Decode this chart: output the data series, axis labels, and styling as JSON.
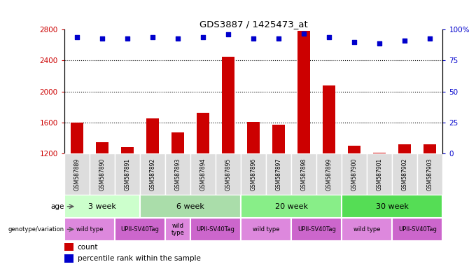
{
  "title": "GDS3887 / 1425473_at",
  "samples": [
    "GSM587889",
    "GSM587890",
    "GSM587891",
    "GSM587892",
    "GSM587893",
    "GSM587894",
    "GSM587895",
    "GSM587896",
    "GSM587897",
    "GSM587898",
    "GSM587899",
    "GSM587900",
    "GSM587901",
    "GSM587902",
    "GSM587903"
  ],
  "counts": [
    1600,
    1340,
    1280,
    1650,
    1470,
    1720,
    2450,
    1610,
    1570,
    2780,
    2080,
    1300,
    1210,
    1320,
    1320
  ],
  "percentiles": [
    94,
    93,
    93,
    94,
    93,
    94,
    96,
    93,
    93,
    97,
    94,
    90,
    89,
    91,
    93
  ],
  "bar_color": "#cc0000",
  "dot_color": "#0000cc",
  "ylim_left": [
    1200,
    2800
  ],
  "ylim_right": [
    0,
    100
  ],
  "yticks_left": [
    1200,
    1600,
    2000,
    2400,
    2800
  ],
  "yticks_right": [
    0,
    25,
    50,
    75,
    100
  ],
  "age_groups": [
    {
      "label": "3 week",
      "start": 0,
      "end": 3,
      "color": "#ccffcc"
    },
    {
      "label": "6 week",
      "start": 3,
      "end": 7,
      "color": "#aaddaa"
    },
    {
      "label": "20 week",
      "start": 7,
      "end": 11,
      "color": "#88ee88"
    },
    {
      "label": "30 week",
      "start": 11,
      "end": 15,
      "color": "#55dd55"
    }
  ],
  "genotype_groups": [
    {
      "label": "wild type",
      "start": 0,
      "end": 2,
      "color": "#dd88dd"
    },
    {
      "label": "UPII-SV40Tag",
      "start": 2,
      "end": 4,
      "color": "#cc66cc"
    },
    {
      "label": "wild\ntype",
      "start": 4,
      "end": 5,
      "color": "#dd88dd"
    },
    {
      "label": "UPII-SV40Tag",
      "start": 5,
      "end": 7,
      "color": "#cc66cc"
    },
    {
      "label": "wild type",
      "start": 7,
      "end": 9,
      "color": "#dd88dd"
    },
    {
      "label": "UPII-SV40Tag",
      "start": 9,
      "end": 11,
      "color": "#cc66cc"
    },
    {
      "label": "wild type",
      "start": 11,
      "end": 13,
      "color": "#dd88dd"
    },
    {
      "label": "UPII-SV40Tag",
      "start": 13,
      "end": 15,
      "color": "#cc66cc"
    }
  ],
  "legend_count_color": "#cc0000",
  "legend_dot_color": "#0000cc",
  "grid_color": "#000000",
  "left_tick_color": "#cc0000",
  "right_tick_color": "#0000cc",
  "bar_width": 0.5,
  "sample_label_bg": "#dddddd"
}
